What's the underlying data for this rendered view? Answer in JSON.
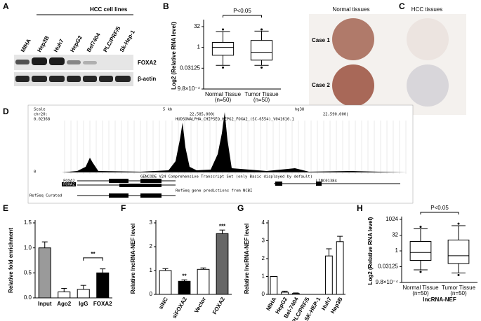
{
  "panel_labels": [
    "A",
    "B",
    "C",
    "D",
    "E",
    "F",
    "G",
    "H"
  ],
  "western_blot": {
    "group_label": "HCC cell lines",
    "lanes": [
      "MIHA",
      "Hep3B",
      "Huh7",
      "HepG2",
      "Bel7404",
      "PLC/PRF/5",
      "Sk-Hep-1"
    ],
    "bands": [
      "FOXA2",
      "β-actin"
    ]
  },
  "tissue": {
    "columns": [
      "Normal tissues",
      "HCC tissues"
    ],
    "rows": [
      "Case 1",
      "Case 2"
    ]
  },
  "browser": {
    "scale": "Scale",
    "chrom": "chr20:",
    "scale_bar": "5 kb",
    "assembly": "hg38",
    "pos1": "22,585,000|",
    "pos2": "22,590,000|",
    "track_name": "HUDSONALPHA_CHIPSEQ_HEPG2_FOXA2_(SC-6554)_V041610.1",
    "track_max": "0.02368",
    "track_min": "0",
    "gencode": "GENCODE V24 Comprehensive Transcript Set (only Basic displayed by default)",
    "genes": [
      "FOXA2",
      "FOXA2",
      "LINC01384"
    ],
    "refseq": "RefSeq gene predictions from NCBI",
    "refseq_label": "RefSeq Curated"
  },
  "chart_data": [
    {
      "type": "box",
      "ylabel": "Log2 (Relative RNA level)",
      "categories": [
        "Normal Tissue",
        "Tumor Tissue"
      ],
      "sublabels": [
        "(n=50)",
        "(n=50)"
      ],
      "log_base": 2,
      "color": "#000000",
      "ylim": [
        0.0009765625,
        64
      ],
      "yticks": [
        {
          "value": 0.0009765625,
          "label": "9.8×10⁻⁴"
        },
        0.03125,
        1,
        32
      ],
      "boxes": [
        {
          "whisker_low": 0.05,
          "q1": 0.27,
          "median": 1,
          "q3": 2.3,
          "whisker_high": 14
        },
        {
          "whisker_low": 0.05,
          "q1": 0.12,
          "median": 0.44,
          "q3": 3.2,
          "whisker_high": 15
        }
      ],
      "outliers": [
        [
          20,
          0.035
        ],
        [
          20,
          0.035
        ]
      ],
      "annotation": "P<0.05"
    },
    {
      "type": "bar",
      "ylabel": "Relative fold enrichment",
      "categories": [
        "Input",
        "Ago2",
        "IgG",
        "FOXA2"
      ],
      "values": [
        1.0,
        0.12,
        0.17,
        0.5
      ],
      "errors": [
        0.12,
        0.07,
        0.08,
        0.08
      ],
      "colors": [
        "#9a9a9a",
        "#ffffff",
        "#ffffff",
        "#000000"
      ],
      "ylim": [
        0,
        1.5
      ],
      "yticks": [
        {
          "value": 0,
          "label": "0.0"
        },
        {
          "value": 0.5,
          "label": "0.5"
        },
        {
          "value": 1,
          "label": "1.0"
        },
        {
          "value": 1.5,
          "label": "1.5"
        }
      ],
      "bracket": "**"
    },
    {
      "type": "bar",
      "ylabel": "Relative lncRNA-NEF level",
      "categories": [
        "siNC",
        "siFOXA2",
        "Vector",
        "FOXA2"
      ],
      "values": [
        1.0,
        0.55,
        1.05,
        2.55
      ],
      "errors": [
        0.08,
        0.06,
        0.06,
        0.15
      ],
      "colors": [
        "#ffffff",
        "#000000",
        "#ffffff",
        "#666666"
      ],
      "ylim": [
        0,
        3
      ],
      "yticks": [
        0,
        1,
        2,
        3
      ],
      "bar_labels": [
        null,
        "**",
        null,
        "***"
      ]
    },
    {
      "type": "bar",
      "ylabel": "Relative lncRNA-NEF level",
      "categories": [
        "MIHA",
        "HepG2",
        "Bel-7404",
        "PLC/PRF/5",
        "SK-HEP-1",
        "Huh7",
        "Hep3B"
      ],
      "values": [
        1.0,
        0.12,
        0.05,
        0,
        0,
        2.15,
        2.95
      ],
      "errors": [
        0,
        0.06,
        0.03,
        0,
        0,
        0.4,
        0.3
      ],
      "colors": [
        "#ffffff",
        "#ffffff",
        "#ffffff",
        "#ffffff",
        "#ffffff",
        "#ffffff",
        "#ffffff"
      ],
      "ylim": [
        0,
        4
      ],
      "yticks": [
        0,
        1,
        2,
        3,
        4
      ]
    },
    {
      "type": "box",
      "ylabel": "Log2 (Relative RNA level)",
      "xlabel": "lncRNA-NEF",
      "categories": [
        "Normal Tissue",
        "Tumor Tissue"
      ],
      "sublabels": [
        "(n=50)",
        "(n=50)"
      ],
      "log_base": 2,
      "color": "#000000",
      "ylim": [
        0.0009765625,
        1024
      ],
      "yticks": [
        {
          "value": 0.0009765625,
          "label": "9.8×10⁻⁴"
        },
        0.03125,
        1,
        32,
        1024
      ],
      "boxes": [
        {
          "whisker_low": 0.0156,
          "q1": 0.125,
          "median": 0.71,
          "q3": 8,
          "whisker_high": 128
        },
        {
          "whisker_low": 0.0078,
          "q1": 0.0625,
          "median": 0.35,
          "q3": 11,
          "whisker_high": 256
        }
      ],
      "outliers": [
        [
          200,
          0.01
        ],
        [
          400,
          0.005
        ]
      ],
      "annotation": "P<0.05"
    }
  ]
}
